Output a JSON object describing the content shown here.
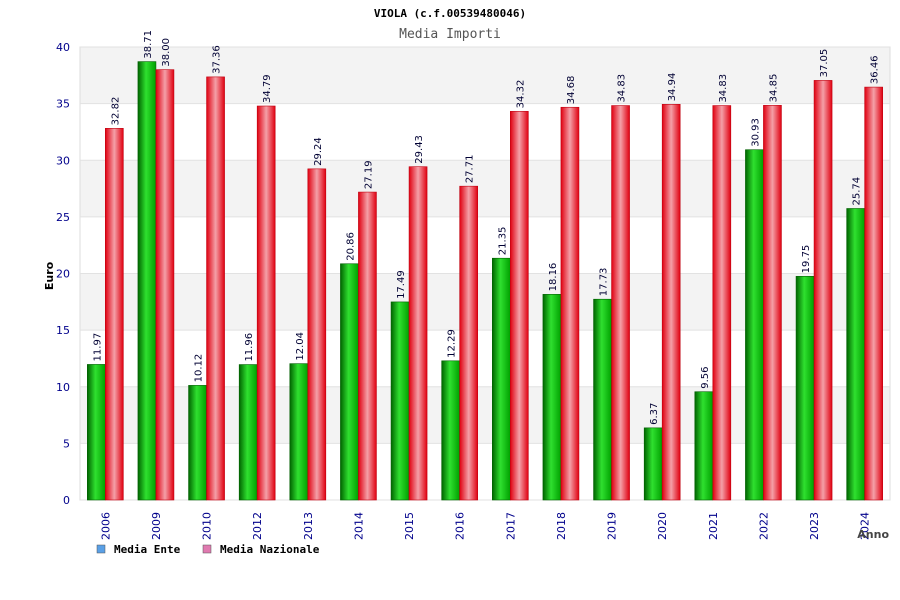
{
  "chart_data": {
    "type": "bar",
    "title": "VIOLA (c.f.00539480046)",
    "subtitle": "Media Importi",
    "xlabel": "Anno",
    "ylabel": "Euro",
    "ylim": [
      0,
      40
    ],
    "yticks": [
      0,
      5,
      10,
      15,
      20,
      25,
      30,
      35,
      40
    ],
    "grid": true,
    "legend_position": "bottom-left",
    "categories": [
      "2006",
      "2009",
      "2010",
      "2012",
      "2013",
      "2014",
      "2015",
      "2016",
      "2017",
      "2018",
      "2019",
      "2020",
      "2021",
      "2022",
      "2023",
      "2024"
    ],
    "series": [
      {
        "name": "Media Ente",
        "color": "#00b000",
        "legend_color": "#5aa0e6",
        "values": [
          11.97,
          38.71,
          10.12,
          11.96,
          12.04,
          20.86,
          17.49,
          12.29,
          21.35,
          18.16,
          17.73,
          6.37,
          9.56,
          30.93,
          19.75,
          25.74
        ]
      },
      {
        "name": "Media Nazionale",
        "color": "#e8101e",
        "legend_color": "#e07ab0",
        "values": [
          32.82,
          38.0,
          37.36,
          34.79,
          29.24,
          27.19,
          29.43,
          27.71,
          34.32,
          34.68,
          34.83,
          34.94,
          34.83,
          34.85,
          37.05,
          36.46
        ]
      }
    ]
  }
}
